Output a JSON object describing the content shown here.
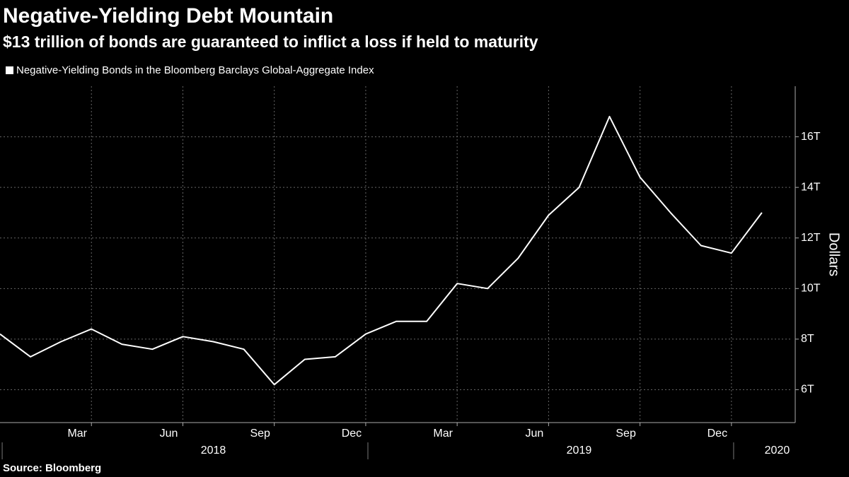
{
  "chart_data": {
    "type": "line",
    "title": "Negative-Yielding Debt Mountain",
    "subtitle": "$13 trillion of bonds are guaranteed to inflict a loss if held to maturity",
    "y_label": "Dollars",
    "source": "Source: Bloomberg",
    "x": [
      "2017-12",
      "2018-01",
      "2018-02",
      "2018-03",
      "2018-04",
      "2018-05",
      "2018-06",
      "2018-07",
      "2018-08",
      "2018-09",
      "2018-10",
      "2018-11",
      "2018-12",
      "2019-01",
      "2019-02",
      "2019-03",
      "2019-04",
      "2019-05",
      "2019-06",
      "2019-07",
      "2019-08",
      "2019-09",
      "2019-10",
      "2019-11",
      "2019-12",
      "2020-01"
    ],
    "series": [
      {
        "name": "Negative-Yielding Bonds in the Bloomberg Barclays Global-Aggregate Index",
        "color": "#ffffff",
        "values": [
          8.2,
          7.3,
          7.9,
          8.4,
          7.8,
          7.6,
          8.1,
          7.9,
          7.6,
          6.2,
          7.2,
          7.3,
          8.2,
          8.7,
          8.7,
          10.2,
          10.0,
          11.2,
          12.9,
          14.0,
          16.8,
          14.4,
          13.0,
          11.7,
          11.4,
          13.0
        ]
      }
    ],
    "xlim": [
      "2017-12",
      "2020-02"
    ],
    "xticks": [
      {
        "value": "2018-03",
        "label": "Mar"
      },
      {
        "value": "2018-06",
        "label": "Jun"
      },
      {
        "value": "2018-09",
        "label": "Sep"
      },
      {
        "value": "2018-12",
        "label": "Dec"
      },
      {
        "value": "2019-03",
        "label": "Mar"
      },
      {
        "value": "2019-06",
        "label": "Jun"
      },
      {
        "value": "2019-09",
        "label": "Sep"
      },
      {
        "value": "2019-12",
        "label": "Dec"
      }
    ],
    "year_ticks": [
      "2018",
      "2019",
      "2020"
    ],
    "ylim": [
      4.7,
      18
    ],
    "yticks": [
      {
        "value": 6,
        "label": "6T"
      },
      {
        "value": 8,
        "label": "8T"
      },
      {
        "value": 10,
        "label": "10T"
      },
      {
        "value": 12,
        "label": "12T"
      },
      {
        "value": 14,
        "label": "14T"
      },
      {
        "value": 16,
        "label": "16T"
      }
    ],
    "grid": true
  }
}
